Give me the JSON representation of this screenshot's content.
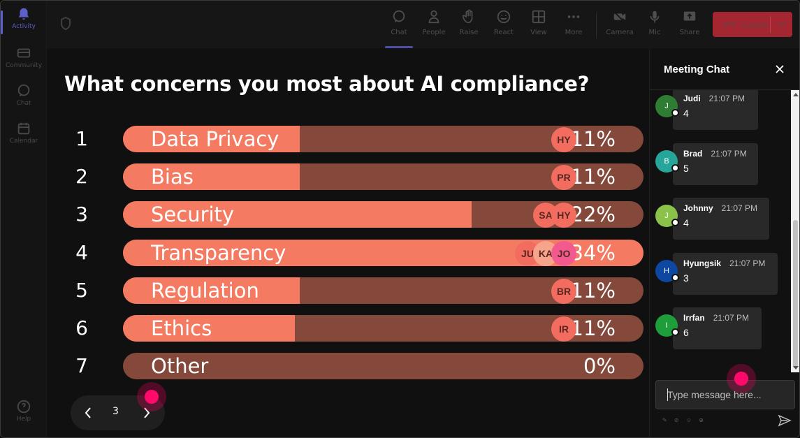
{
  "rail": {
    "items": [
      {
        "label": "Activity",
        "icon": "bell-icon"
      },
      {
        "label": "Community",
        "icon": "community-icon"
      },
      {
        "label": "Chat",
        "icon": "chat-icon"
      },
      {
        "label": "Calendar",
        "icon": "calendar-icon"
      }
    ],
    "help": "Help"
  },
  "toolbar": {
    "chat": "Chat",
    "people": "People",
    "raise": "Raise",
    "react": "React",
    "view": "View",
    "more": "More",
    "camera": "Camera",
    "mic": "Mic",
    "share": "Share",
    "leave": "Leave"
  },
  "poll": {
    "title": "What concerns you most about AI compliance?",
    "options": [
      {
        "num": "1",
        "label": "Data Privacy",
        "pct": "11%",
        "fill": 0.34,
        "voters": [
          "HY"
        ]
      },
      {
        "num": "2",
        "label": "Bias",
        "pct": "11%",
        "fill": 0.34,
        "voters": [
          "PR"
        ]
      },
      {
        "num": "3",
        "label": "Security",
        "pct": "22%",
        "fill": 0.67,
        "voters": [
          "SA",
          "HY"
        ]
      },
      {
        "num": "4",
        "label": "Transparency",
        "pct": "34%",
        "fill": 1.0,
        "voters": [
          "JU",
          "KA",
          "JO"
        ]
      },
      {
        "num": "5",
        "label": "Regulation",
        "pct": "11%",
        "fill": 0.34,
        "voters": [
          "BR"
        ]
      },
      {
        "num": "6",
        "label": "Ethics",
        "pct": "11%",
        "fill": 0.33,
        "voters": [
          "IR"
        ]
      },
      {
        "num": "7",
        "label": "Other",
        "pct": "0%",
        "fill": 0.0,
        "voters": []
      }
    ],
    "page": "3"
  },
  "chat": {
    "title": "Meeting Chat",
    "messages": [
      {
        "initial": "J",
        "name": "Judi",
        "time": "21:07 PM",
        "text": "4",
        "color": "#2e7d32"
      },
      {
        "initial": "B",
        "name": "Brad",
        "time": "21:07 PM",
        "text": "5",
        "color": "#26a69a"
      },
      {
        "initial": "J",
        "name": "Johnny",
        "time": "21:07 PM",
        "text": "4",
        "color": "#8bc34a"
      },
      {
        "initial": "H",
        "name": "Hyungsik",
        "time": "21:07 PM",
        "text": "3",
        "color": "#0d47a1"
      },
      {
        "initial": "I",
        "name": "Irrfan",
        "time": "21:07 PM",
        "text": "6",
        "color": "#1e9e3a"
      }
    ],
    "input_placeholder": "Type message here..."
  },
  "colors": {
    "bar_fill": "#f47b62",
    "bar_track": "#84493a",
    "leave": "#a32631",
    "accent": "#5b5fc7"
  }
}
